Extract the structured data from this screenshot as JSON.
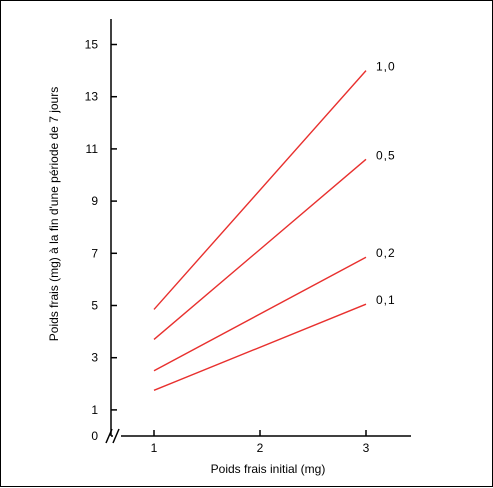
{
  "chart_data": {
    "type": "line",
    "title": "",
    "xlabel": "Poids frais initial (mg)",
    "ylabel": "Poids frais (mg) à la fin d'une période de 7 jours",
    "xlim": [
      0,
      3.4
    ],
    "ylim": [
      0,
      15
    ],
    "x_ticks": [
      "1",
      "2",
      "3"
    ],
    "y_ticks": [
      "0",
      "1",
      "3",
      "5",
      "7",
      "9",
      "11",
      "13",
      "15"
    ],
    "axis_break": "x",
    "grid": false,
    "series": [
      {
        "name": "1,0",
        "color": "#e8302e",
        "x": [
          1,
          3
        ],
        "y": [
          4.85,
          14.0
        ]
      },
      {
        "name": "0,5",
        "color": "#e8302e",
        "x": [
          1,
          3
        ],
        "y": [
          3.7,
          10.6
        ]
      },
      {
        "name": "0,2",
        "color": "#e8302e",
        "x": [
          1,
          3
        ],
        "y": [
          2.5,
          6.85
        ]
      },
      {
        "name": "0,1",
        "color": "#e8302e",
        "x": [
          1,
          3
        ],
        "y": [
          1.75,
          5.05
        ]
      }
    ]
  }
}
